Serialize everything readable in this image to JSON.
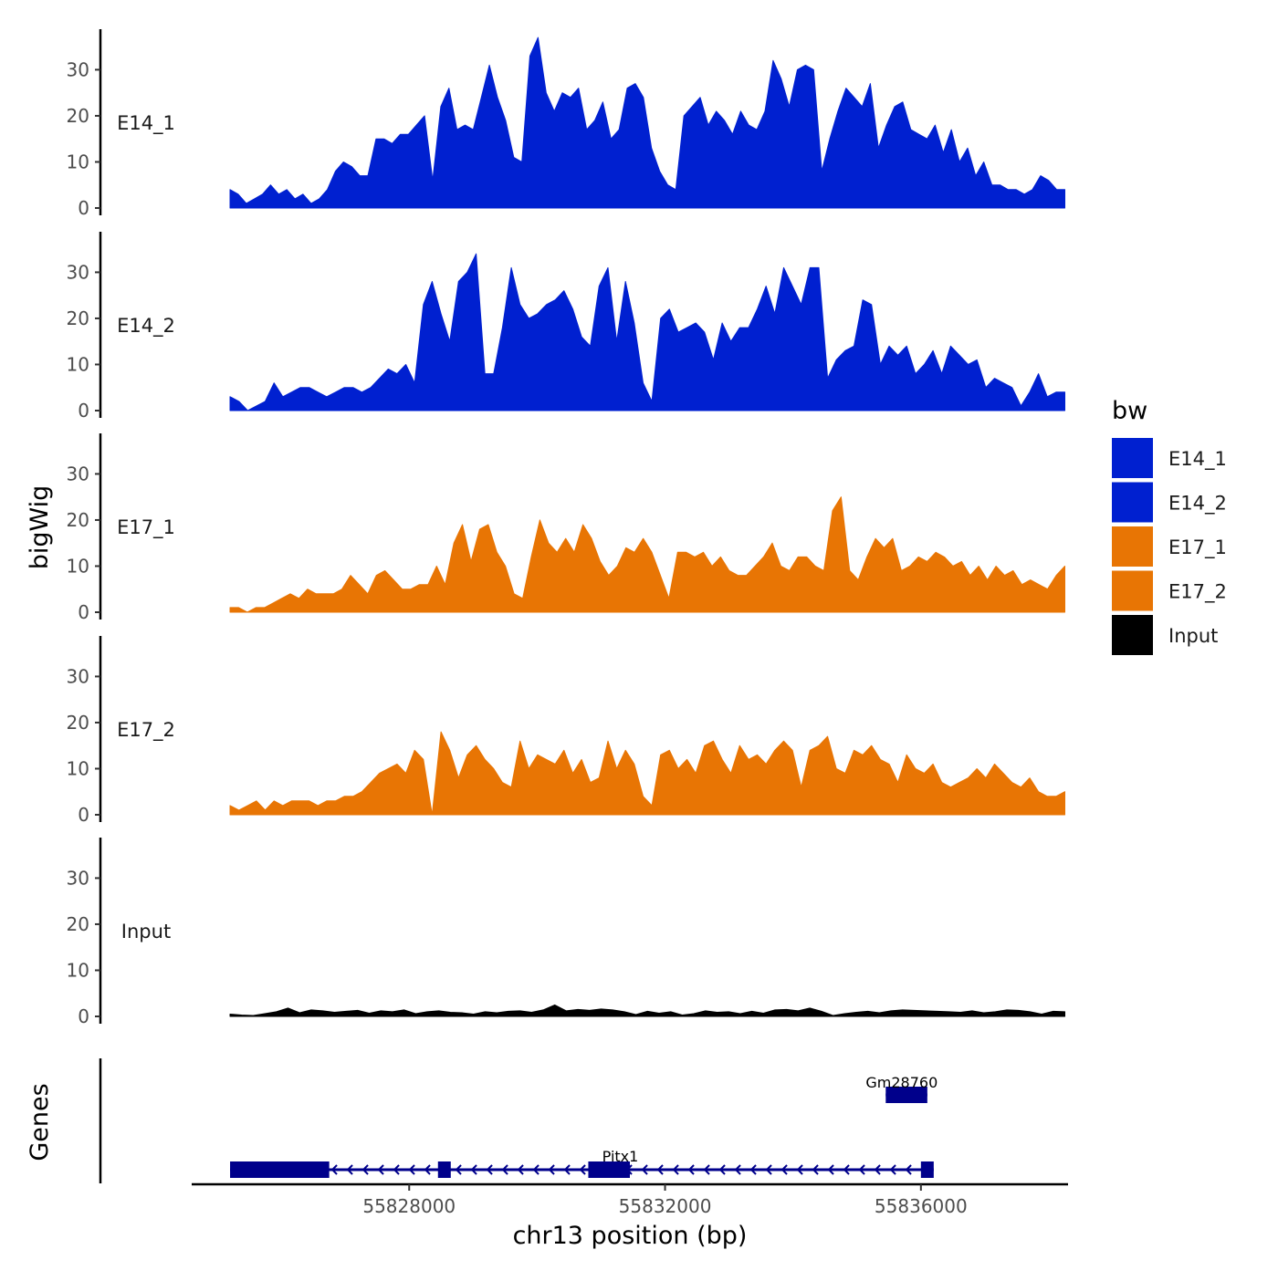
{
  "chart_data": {
    "type": "area",
    "y_axis_title": "bigWig",
    "genes_axis_title": "Genes",
    "x_axis_title": "chr13 position (bp)",
    "xlim": [
      55824600,
      55838300
    ],
    "x_ticks": [
      {
        "value": 55828000,
        "label": "55828000"
      },
      {
        "value": 55832000,
        "label": "55832000"
      },
      {
        "value": 55836000,
        "label": "55836000"
      }
    ],
    "ylim": [
      0,
      38
    ],
    "y_ticks": [
      {
        "value": 0,
        "label": "0"
      },
      {
        "value": 10,
        "label": "10"
      },
      {
        "value": 20,
        "label": "20"
      },
      {
        "value": 30,
        "label": "30"
      }
    ],
    "legend": {
      "title": "bw",
      "items": [
        {
          "label": "E14_1",
          "color": "#0020D0"
        },
        {
          "label": "E14_2",
          "color": "#0020D0"
        },
        {
          "label": "E17_1",
          "color": "#E87504"
        },
        {
          "label": "E17_2",
          "color": "#E87504"
        },
        {
          "label": "Input",
          "color": "#000000"
        }
      ]
    },
    "tracks": [
      {
        "name": "E14_1",
        "color": "#0020D0",
        "x_start": 55825200,
        "x_end": 55838250,
        "values": [
          4,
          3,
          1,
          2,
          3,
          5,
          3,
          4,
          2,
          3,
          1,
          2,
          4,
          8,
          10,
          9,
          7,
          7,
          15,
          15,
          14,
          16,
          16,
          18,
          20,
          6,
          22,
          26,
          17,
          18,
          17,
          24,
          31,
          24,
          19,
          11,
          10,
          33,
          37,
          25,
          21,
          25,
          24,
          26,
          17,
          19,
          23,
          15,
          17,
          26,
          27,
          24,
          13,
          8,
          5,
          4,
          20,
          22,
          24,
          18,
          21,
          19,
          16,
          21,
          18,
          17,
          21,
          32,
          28,
          22,
          30,
          31,
          30,
          8,
          15,
          21,
          26,
          24,
          22,
          27,
          13,
          18,
          22,
          23,
          17,
          16,
          15,
          18,
          12,
          17,
          10,
          13,
          7,
          10,
          5,
          5,
          4,
          4,
          3,
          4,
          7,
          6,
          4,
          4
        ]
      },
      {
        "name": "E14_2",
        "color": "#0020D0",
        "x_start": 55825200,
        "x_end": 55838250,
        "values": [
          3,
          2,
          0,
          1,
          2,
          6,
          3,
          4,
          5,
          5,
          4,
          3,
          4,
          5,
          5,
          4,
          5,
          7,
          9,
          8,
          10,
          6,
          23,
          28,
          21,
          15,
          28,
          30,
          34,
          8,
          8,
          18,
          31,
          23,
          20,
          21,
          23,
          24,
          26,
          22,
          16,
          14,
          27,
          31,
          15,
          28,
          19,
          6,
          2,
          20,
          22,
          17,
          18,
          19,
          17,
          11,
          19,
          15,
          18,
          18,
          22,
          27,
          21,
          31,
          27,
          23,
          31,
          31,
          7,
          11,
          13,
          14,
          24,
          23,
          10,
          14,
          12,
          14,
          8,
          10,
          13,
          8,
          14,
          12,
          10,
          11,
          5,
          7,
          6,
          5,
          1,
          4,
          8,
          3,
          4,
          4
        ]
      },
      {
        "name": "E17_1",
        "color": "#E87504",
        "x_start": 55825200,
        "x_end": 55838250,
        "values": [
          1,
          1,
          0,
          1,
          1,
          2,
          3,
          4,
          3,
          5,
          4,
          4,
          4,
          5,
          8,
          6,
          4,
          8,
          9,
          7,
          5,
          5,
          6,
          6,
          10,
          6,
          15,
          19,
          11,
          18,
          19,
          13,
          10,
          4,
          3,
          12,
          20,
          15,
          13,
          16,
          13,
          19,
          16,
          11,
          8,
          10,
          14,
          13,
          16,
          13,
          8,
          3,
          13,
          13,
          12,
          13,
          10,
          12,
          9,
          8,
          8,
          10,
          12,
          15,
          10,
          9,
          12,
          12,
          10,
          9,
          22,
          25,
          9,
          7,
          12,
          16,
          14,
          16,
          9,
          10,
          12,
          11,
          13,
          12,
          10,
          11,
          8,
          10,
          7,
          10,
          8,
          9,
          6,
          7,
          6,
          5,
          8,
          10
        ]
      },
      {
        "name": "E17_2",
        "color": "#E87504",
        "x_start": 55825200,
        "x_end": 55838250,
        "values": [
          2,
          1,
          2,
          3,
          1,
          3,
          2,
          3,
          3,
          3,
          2,
          3,
          3,
          4,
          4,
          5,
          7,
          9,
          10,
          11,
          9,
          14,
          12,
          0,
          18,
          14,
          8,
          13,
          15,
          12,
          10,
          7,
          6,
          16,
          10,
          13,
          12,
          11,
          14,
          9,
          12,
          7,
          8,
          16,
          10,
          14,
          11,
          4,
          2,
          13,
          14,
          10,
          12,
          9,
          15,
          16,
          12,
          9,
          15,
          12,
          13,
          11,
          14,
          16,
          14,
          6,
          14,
          15,
          17,
          10,
          9,
          14,
          13,
          15,
          12,
          11,
          7,
          13,
          10,
          9,
          11,
          7,
          6,
          7,
          8,
          10,
          8,
          11,
          9,
          7,
          6,
          8,
          5,
          4,
          4,
          5
        ]
      },
      {
        "name": "Input",
        "color": "#000000",
        "x_start": 55825200,
        "x_end": 55838250,
        "values": [
          0.5,
          0.3,
          0.2,
          0.6,
          1.0,
          1.8,
          0.8,
          1.4,
          1.2,
          0.9,
          1.1,
          1.3,
          0.7,
          1.2,
          1.0,
          1.4,
          0.6,
          1.0,
          1.2,
          0.9,
          0.8,
          0.5,
          1.0,
          0.8,
          1.1,
          1.2,
          0.9,
          1.4,
          2.5,
          1.2,
          1.5,
          1.3,
          1.6,
          1.4,
          1.0,
          0.4,
          1.1,
          0.7,
          1.0,
          0.3,
          0.6,
          1.2,
          0.9,
          1.0,
          0.6,
          1.1,
          0.7,
          1.4,
          1.5,
          1.2,
          1.8,
          1.1,
          0.2,
          0.6,
          0.9,
          1.1,
          0.8,
          1.2,
          1.4,
          1.3,
          1.2,
          1.1,
          1.0,
          0.9,
          1.2,
          0.8,
          1.0,
          1.4,
          1.3,
          1.0,
          0.5,
          1.1,
          1.0
        ]
      }
    ],
    "genes": [
      {
        "name": "Pitx1",
        "start": 55825200,
        "end": 55836200,
        "strand": "-",
        "label_x": 55831300,
        "exons": [
          [
            55825200,
            55826750
          ],
          [
            55828450,
            55828650
          ],
          [
            55830800,
            55831450
          ],
          [
            55836000,
            55836200
          ]
        ]
      },
      {
        "name": "Gm28760",
        "start": 55835450,
        "end": 55836100,
        "strand": "+",
        "label_x": 55835700,
        "exons": [
          [
            55835450,
            55836100
          ]
        ]
      }
    ]
  }
}
